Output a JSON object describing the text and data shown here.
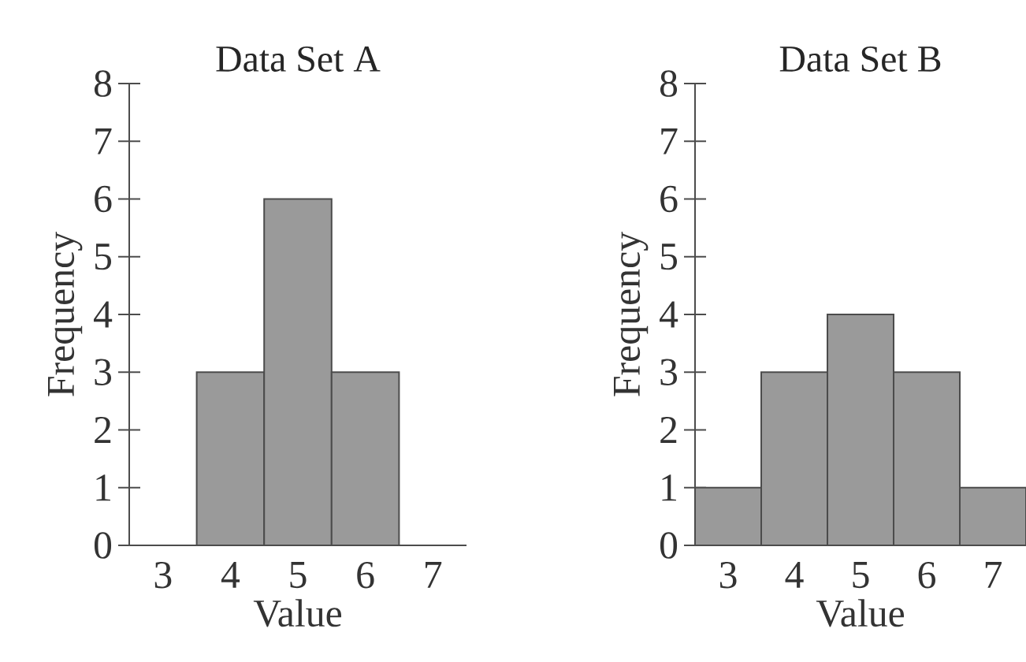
{
  "chart_data": [
    {
      "type": "bar",
      "title": "Data Set A",
      "xlabel": "Value",
      "ylabel": "Frequency",
      "categories": [
        "3",
        "4",
        "5",
        "6",
        "7"
      ],
      "values": [
        0,
        3,
        6,
        3,
        0
      ],
      "color": "#9a9a9a",
      "ylim": [
        0,
        8
      ],
      "yticks": [
        0,
        1,
        2,
        3,
        4,
        5,
        6,
        7,
        8
      ]
    },
    {
      "type": "bar",
      "title": "Data Set B",
      "xlabel": "Value",
      "ylabel": "Frequency",
      "categories": [
        "3",
        "4",
        "5",
        "6",
        "7"
      ],
      "values": [
        1,
        3,
        4,
        3,
        1
      ],
      "color": "#9a9a9a",
      "ylim": [
        0,
        8
      ],
      "yticks": [
        0,
        1,
        2,
        3,
        4,
        5,
        6,
        7,
        8
      ]
    }
  ]
}
